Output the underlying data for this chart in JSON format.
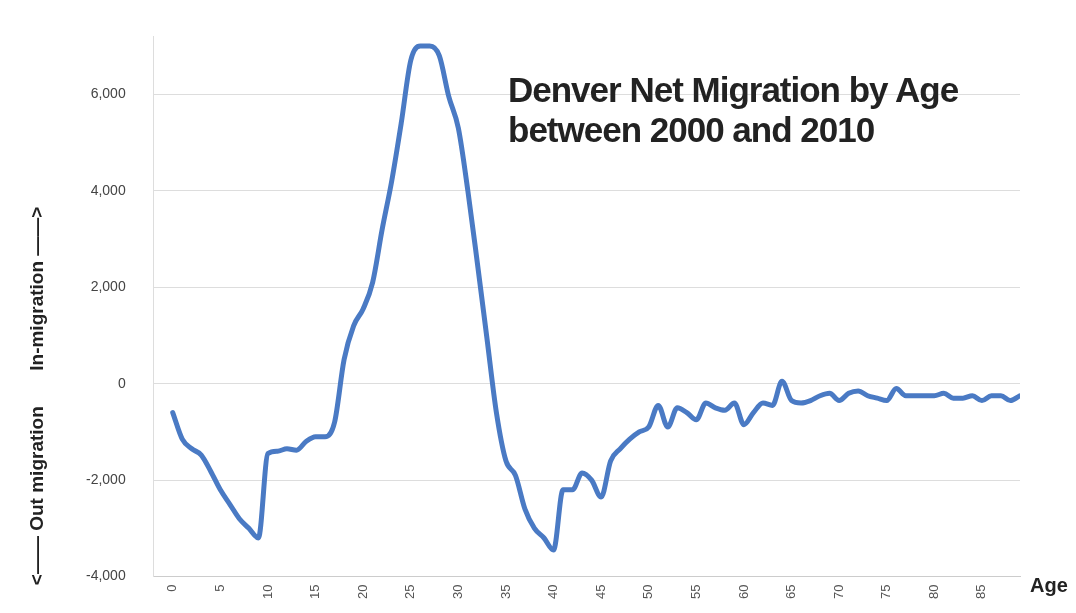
{
  "chart_data": {
    "type": "line",
    "title": "Denver Net Migration by Age between 2000 and 2010",
    "xlabel": "Age",
    "annotations": [
      "In-migration ——>",
      "<—— Out migration"
    ],
    "x": [
      0,
      1,
      2,
      3,
      4,
      5,
      6,
      7,
      8,
      9,
      10,
      11,
      12,
      13,
      14,
      15,
      16,
      17,
      18,
      19,
      20,
      21,
      22,
      23,
      24,
      25,
      26,
      27,
      28,
      29,
      30,
      31,
      32,
      33,
      34,
      35,
      36,
      37,
      38,
      39,
      40,
      41,
      42,
      43,
      44,
      45,
      46,
      47,
      48,
      49,
      50,
      51,
      52,
      53,
      54,
      55,
      56,
      57,
      58,
      59,
      60,
      61,
      62,
      63,
      64,
      65,
      66,
      67,
      68,
      69,
      70,
      71,
      72,
      73,
      74,
      75,
      76,
      77,
      78,
      79,
      80,
      81,
      82,
      83,
      84,
      85,
      86,
      87,
      88,
      89
    ],
    "series": [
      {
        "color": "#4a7ac4",
        "values": [
          -600,
          -1150,
          -1350,
          -1480,
          -1820,
          -2200,
          -2500,
          -2800,
          -3000,
          -3200,
          -1450,
          -1400,
          -1350,
          -1380,
          -1200,
          -1100,
          -1100,
          -800,
          500,
          1200,
          1550,
          2100,
          3200,
          4200,
          5400,
          6700,
          7000,
          7000,
          6800,
          5950,
          5300,
          4000,
          2500,
          950,
          -600,
          -1600,
          -1900,
          -2600,
          -3000,
          -3200,
          -3450,
          -2200,
          -2200,
          -1850,
          -2000,
          -2350,
          -1600,
          -1350,
          -1150,
          -1000,
          -900,
          -450,
          -900,
          -500,
          -600,
          -750,
          -400,
          -500,
          -550,
          -400,
          -850,
          -600,
          -400,
          -450,
          50,
          -350,
          -400,
          -350,
          -250,
          -200,
          -350,
          -200,
          -150,
          -250,
          -300,
          -350,
          -100,
          -250,
          -250,
          -250,
          -250,
          -200,
          -300,
          -300,
          -250,
          -350,
          -250,
          -250,
          -350,
          -250
        ]
      }
    ],
    "xlim": [
      -2,
      89
    ],
    "xticks": [
      0,
      5,
      10,
      15,
      20,
      25,
      30,
      35,
      40,
      45,
      50,
      55,
      60,
      65,
      70,
      75,
      80,
      85
    ],
    "ylim": [
      -4000,
      7200
    ],
    "yticks": [
      {
        "value": -4000,
        "label": "-4,000"
      },
      {
        "value": -2000,
        "label": "-2,000"
      },
      0,
      {
        "value": 2000,
        "label": "2,000"
      },
      {
        "value": 4000,
        "label": "4,000"
      },
      {
        "value": 6000,
        "label": "6,000"
      }
    ],
    "grid": "y",
    "legend": false,
    "marker": "none",
    "line_style": "solid"
  }
}
